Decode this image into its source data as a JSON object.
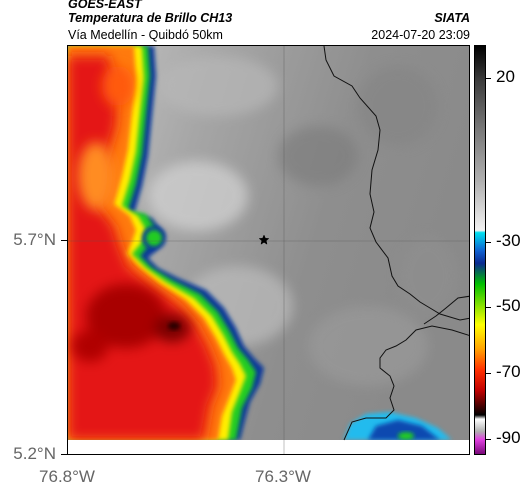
{
  "header": {
    "satellite": "GOES-EAST",
    "product": "Temperatura de Brillo CH13",
    "region": "Vía Medellín - Quibdó 50km",
    "organization": "SIATA",
    "timestamp": "2024-07-20 23:09"
  },
  "axes": {
    "latitude_labels": [
      "5.7°N",
      "5.2°N"
    ],
    "longitude_labels": [
      "76.8°W",
      "76.3°W"
    ]
  },
  "colorbar": {
    "labels": [
      "20",
      "-30",
      "-50",
      "-70",
      "-90"
    ],
    "values": [
      20,
      -30,
      -50,
      -70,
      -90
    ],
    "range": [
      -95,
      30
    ]
  },
  "map": {
    "marker": "star-icon",
    "colors": {
      "warm_gray": "#9a9a9a",
      "cold_red": "#e01010",
      "deep_red": "#a00000",
      "orange": "#ff7a10",
      "yellow": "#ffee00",
      "green": "#22cc22",
      "blue": "#0a3a9a"
    }
  }
}
